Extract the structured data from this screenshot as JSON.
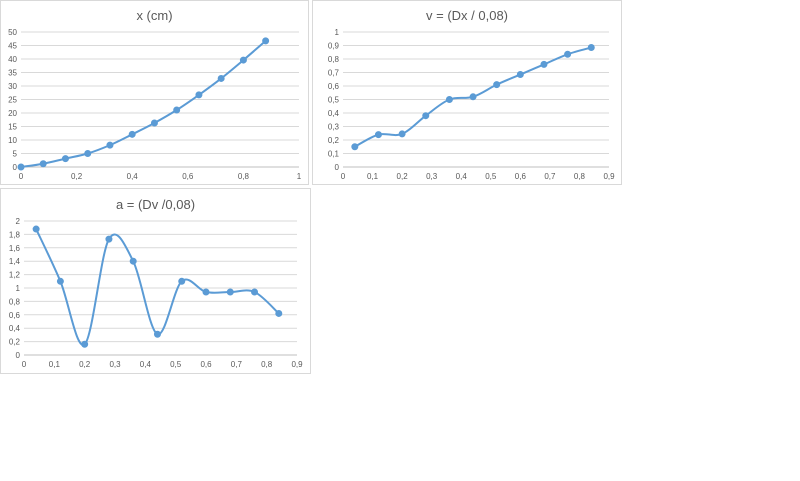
{
  "chart_data": [
    {
      "type": "line",
      "title": "x (cm)",
      "xlabel": "",
      "ylabel": "",
      "xlim": [
        0,
        1
      ],
      "ylim": [
        0,
        50
      ],
      "x_ticks": [
        0,
        0.2,
        0.4,
        0.6,
        0.8,
        1
      ],
      "x_tick_labels": [
        "0",
        "0,2",
        "0,4",
        "0,6",
        "0,8",
        "1"
      ],
      "y_ticks": [
        0,
        5,
        10,
        15,
        20,
        25,
        30,
        35,
        40,
        45,
        50
      ],
      "y_tick_labels": [
        "0",
        "5",
        "10",
        "15",
        "20",
        "25",
        "30",
        "35",
        "40",
        "45",
        "50"
      ],
      "grid": true,
      "series": [
        {
          "x": [
            0,
            0.08,
            0.16,
            0.24,
            0.32,
            0.4,
            0.48,
            0.56,
            0.64,
            0.72,
            0.8,
            0.88
          ],
          "y": [
            0,
            1.2,
            3.1,
            5.0,
            8.1,
            12.1,
            16.3,
            21.1,
            26.7,
            32.8,
            39.6,
            46.7
          ]
        }
      ],
      "color": "#5b9bd5"
    },
    {
      "type": "line",
      "title": "v = (Dx / 0,08)",
      "xlabel": "",
      "ylabel": "",
      "xlim": [
        0,
        0.9
      ],
      "ylim": [
        0,
        1
      ],
      "x_ticks": [
        0,
        0.1,
        0.2,
        0.3,
        0.4,
        0.5,
        0.6,
        0.7,
        0.8,
        0.9
      ],
      "x_tick_labels": [
        "0",
        "0,1",
        "0,2",
        "0,3",
        "0,4",
        "0,5",
        "0,6",
        "0,7",
        "0,8",
        "0,9"
      ],
      "y_ticks": [
        0,
        0.1,
        0.2,
        0.3,
        0.4,
        0.5,
        0.6,
        0.7,
        0.8,
        0.9,
        1
      ],
      "y_tick_labels": [
        "0",
        "0,1",
        "0,2",
        "0,3",
        "0,4",
        "0,5",
        "0,6",
        "0,7",
        "0,8",
        "0,9",
        "1"
      ],
      "grid": true,
      "series": [
        {
          "x": [
            0.04,
            0.12,
            0.2,
            0.28,
            0.36,
            0.44,
            0.52,
            0.6,
            0.68,
            0.76,
            0.84
          ],
          "y": [
            0.15,
            0.24,
            0.245,
            0.38,
            0.5,
            0.52,
            0.61,
            0.685,
            0.76,
            0.835,
            0.885
          ]
        }
      ],
      "color": "#5b9bd5"
    },
    {
      "type": "line",
      "title": "a = (Dv /0,08)",
      "xlabel": "",
      "ylabel": "",
      "xlim": [
        0,
        0.9
      ],
      "ylim": [
        0,
        2
      ],
      "x_ticks": [
        0,
        0.1,
        0.2,
        0.3,
        0.4,
        0.5,
        0.6,
        0.7,
        0.8,
        0.9
      ],
      "x_tick_labels": [
        "0",
        "0,1",
        "0,2",
        "0,3",
        "0,4",
        "0,5",
        "0,6",
        "0,7",
        "0,8",
        "0,9"
      ],
      "y_ticks": [
        0,
        0.2,
        0.4,
        0.6,
        0.8,
        1,
        1.2,
        1.4,
        1.6,
        1.8,
        2
      ],
      "y_tick_labels": [
        "0",
        "0,2",
        "0,4",
        "0,6",
        "0,8",
        "1",
        "1,2",
        "1,4",
        "1,6",
        "1,8",
        "2"
      ],
      "grid": true,
      "series": [
        {
          "x": [
            0.04,
            0.12,
            0.2,
            0.28,
            0.36,
            0.44,
            0.52,
            0.6,
            0.68,
            0.76,
            0.84
          ],
          "y": [
            1.88,
            1.1,
            0.16,
            1.73,
            1.4,
            0.31,
            1.1,
            0.94,
            0.94,
            0.94,
            0.62
          ]
        }
      ],
      "color": "#5b9bd5"
    }
  ]
}
